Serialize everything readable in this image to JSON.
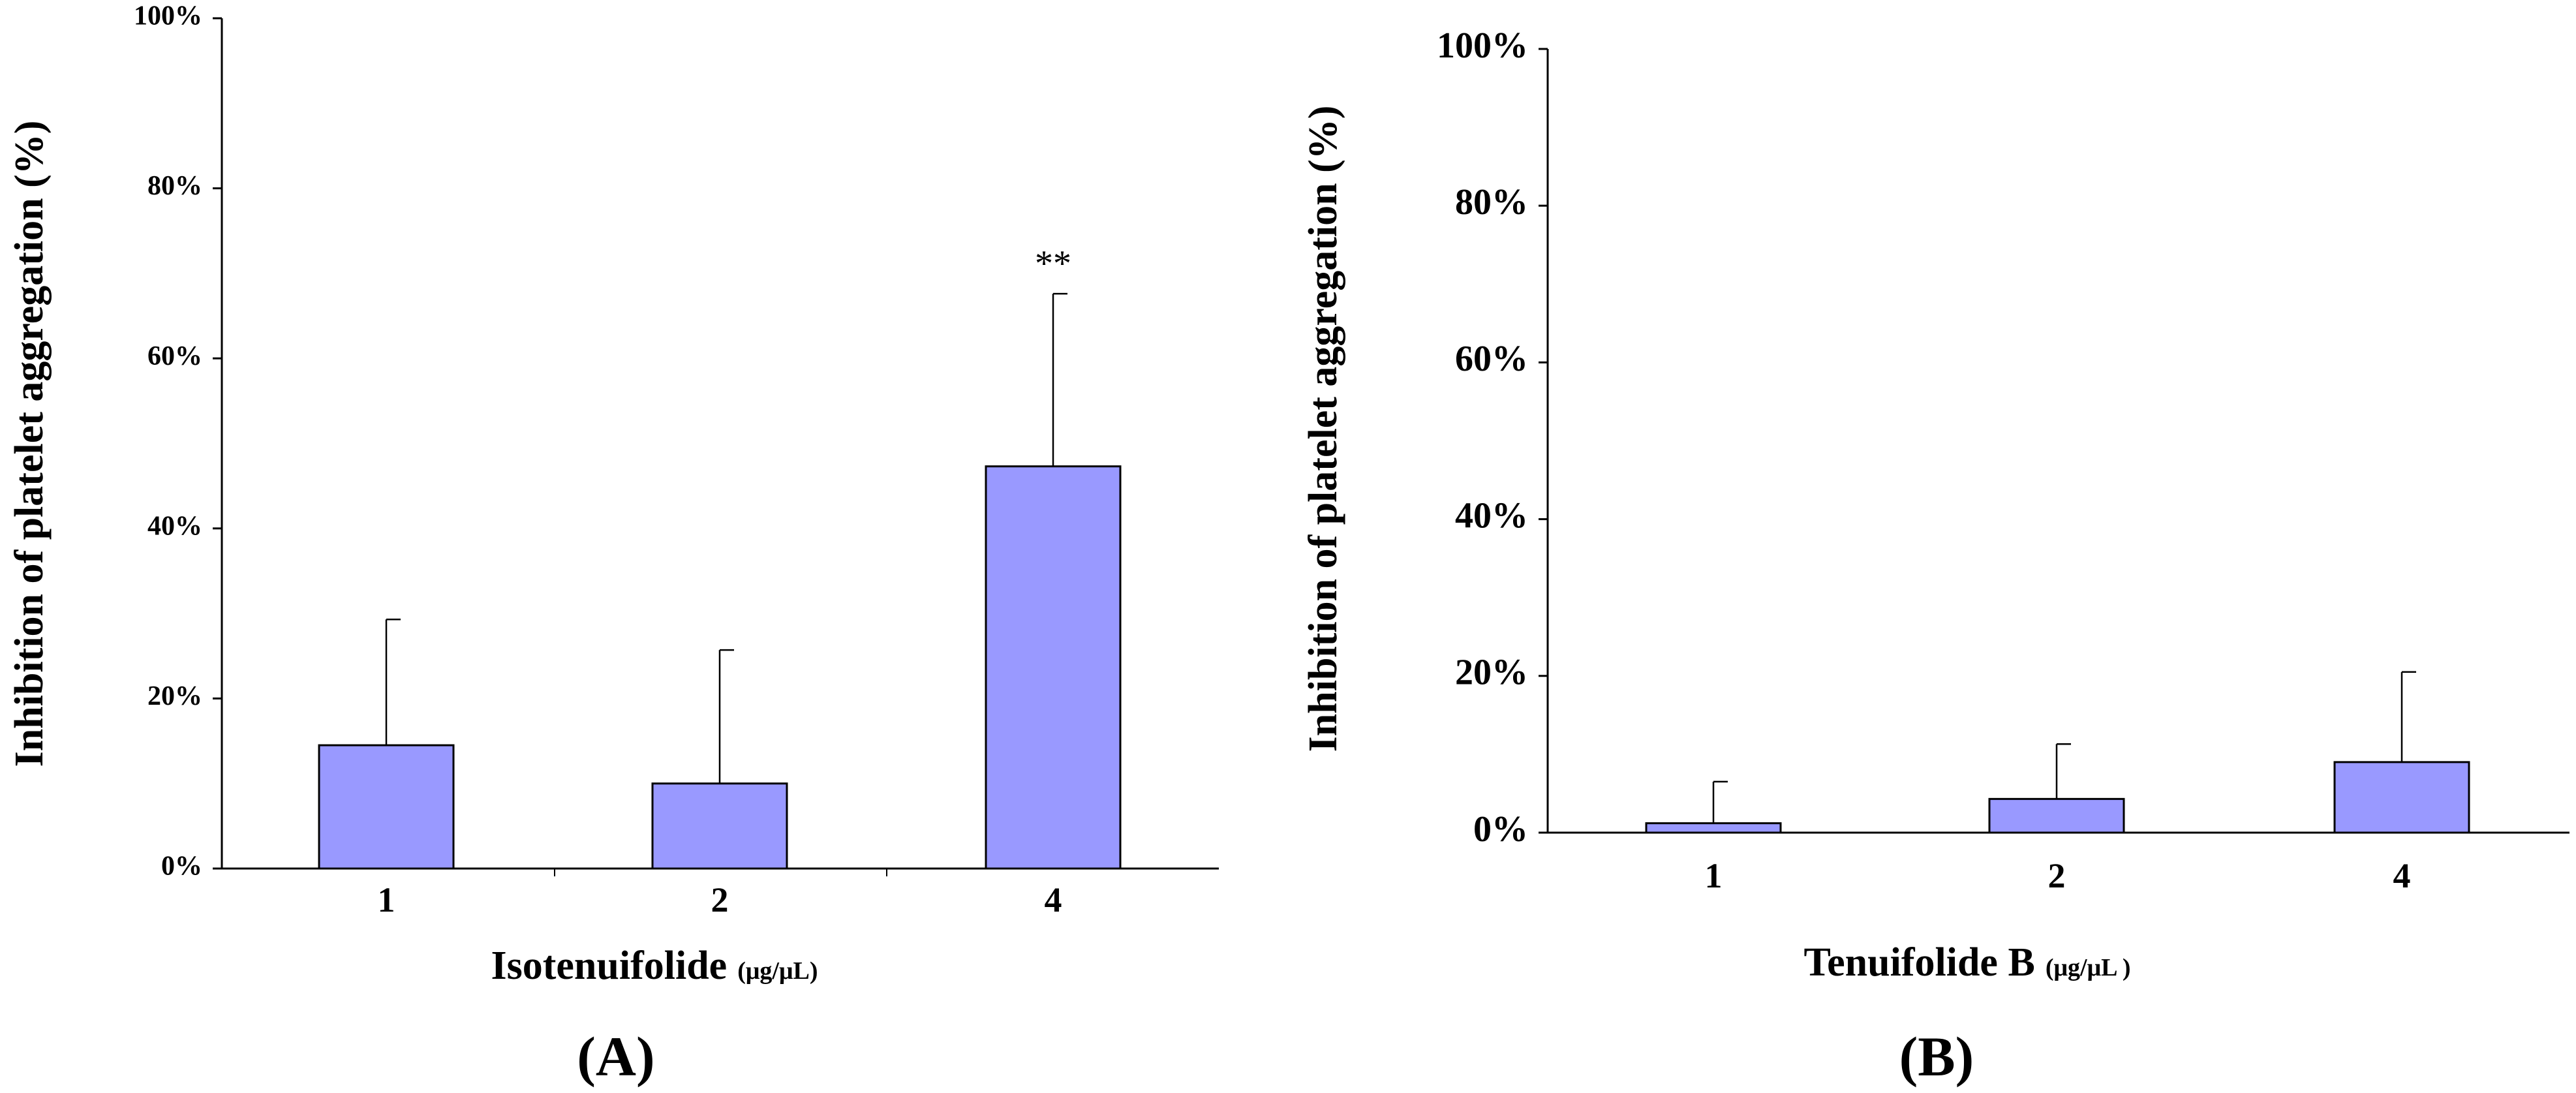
{
  "colors": {
    "bar_fill": "#9999ff",
    "bar_stroke": "#000000",
    "axis": "#000000",
    "background": "#ffffff"
  },
  "chart_data": [
    {
      "type": "bar",
      "panel_label": "(A)",
      "title": "",
      "categories": [
        "1",
        "2",
        "4"
      ],
      "values": [
        14.5,
        10,
        47.3
      ],
      "error": [
        14.8,
        15.7,
        20.3
      ],
      "annotations": [
        "",
        "",
        "**"
      ],
      "xlabel": "Isotenuifolide",
      "xlabel_unit": "(μg/μL)",
      "ylabel": "Inhibition of platelet aggregation (%)",
      "ylim": [
        0,
        100
      ],
      "yticks": [
        0,
        20,
        40,
        60,
        80,
        100
      ],
      "ytick_labels": [
        "0%",
        "20%",
        "40%",
        "60%",
        "80%",
        "100%"
      ],
      "grid": false,
      "legend": "none"
    },
    {
      "type": "bar",
      "panel_label": "(B)",
      "title": "",
      "categories": [
        "1",
        "2",
        "4"
      ],
      "values": [
        1.2,
        4.3,
        9
      ],
      "error": [
        5.3,
        7,
        11.5
      ],
      "annotations": [
        "",
        "",
        ""
      ],
      "xlabel": "Tenuifolide B",
      "xlabel_unit": "(μg/μL )",
      "ylabel": "Inhibition of platelet aggregation (%)",
      "ylim": [
        0,
        100
      ],
      "yticks": [
        0,
        20,
        40,
        60,
        80,
        100
      ],
      "ytick_labels": [
        "0%",
        "20%",
        "40%",
        "60%",
        "80%",
        "100%"
      ],
      "grid": false,
      "legend": "none"
    }
  ]
}
